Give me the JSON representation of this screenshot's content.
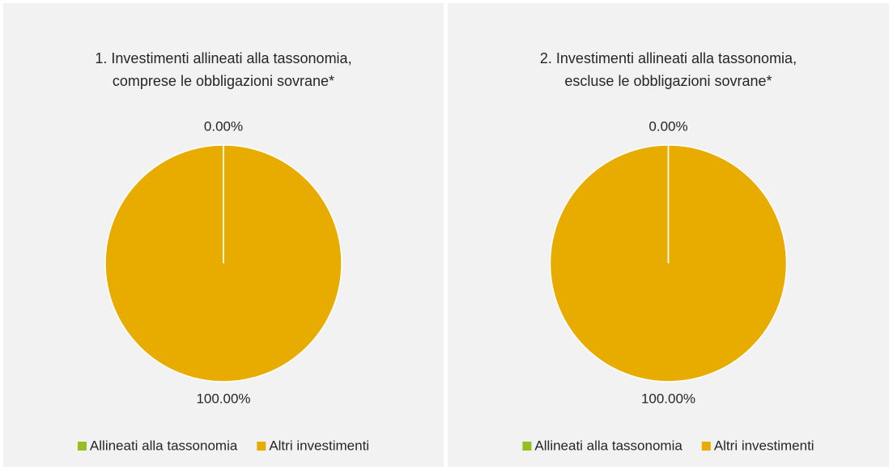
{
  "chart_data": [
    {
      "type": "pie",
      "title": [
        "1. Investimenti allineati alla tassonomia,",
        "comprese le obbligazioni sovrane*"
      ],
      "categories": [
        "Allineati alla tassonomia",
        "Altri investimenti"
      ],
      "values": [
        0,
        100
      ],
      "value_labels": [
        "0.00%",
        "100.00%"
      ],
      "colors": [
        "#93c01f",
        "#e8ab00"
      ],
      "legend": "bottom"
    },
    {
      "type": "pie",
      "title": [
        "2. Investimenti allineati alla tassonomia,",
        "escluse le obbligazioni sovrane*"
      ],
      "categories": [
        "Allineati alla tassonomia",
        "Altri investimenti"
      ],
      "values": [
        0,
        100
      ],
      "value_labels": [
        "0.00%",
        "100.00%"
      ],
      "colors": [
        "#93c01f",
        "#e8ab00"
      ],
      "legend": "bottom"
    }
  ]
}
